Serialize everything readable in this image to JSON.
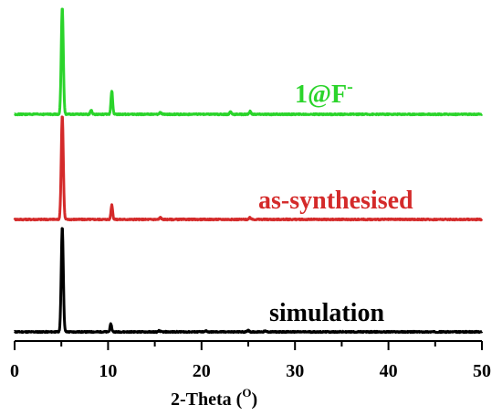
{
  "chart_data": {
    "type": "line",
    "xlabel": "2-Theta (",
    "xlabel_sup": "O",
    "xlabel_close": ")",
    "xlim": [
      0,
      50
    ],
    "x_ticks": [
      "0",
      "10",
      "20",
      "30",
      "40",
      "50"
    ],
    "x_major": [
      0,
      10,
      20,
      30,
      40,
      50
    ],
    "x_minor": [
      5,
      15,
      25,
      35,
      45
    ],
    "y_axis_visible": false,
    "grid": false,
    "series": [
      {
        "name": "simulation",
        "color": "#000000",
        "peaks": [
          [
            5.1,
            100
          ],
          [
            10.3,
            7.5
          ],
          [
            15.5,
            1.2
          ],
          [
            20.5,
            1.0
          ],
          [
            25.0,
            1.8
          ],
          [
            26.8,
            0.8
          ]
        ]
      },
      {
        "name": "as-synthesised",
        "color": "#d42a2a",
        "peaks": [
          [
            5.1,
            100
          ],
          [
            10.4,
            14
          ],
          [
            15.6,
            2
          ],
          [
            25.2,
            1.8
          ]
        ]
      },
      {
        "name": "1@F",
        "name_sup": "-",
        "color": "#2bd42b",
        "peaks": [
          [
            5.1,
            100
          ],
          [
            8.2,
            4
          ],
          [
            10.4,
            22
          ],
          [
            15.6,
            2
          ],
          [
            23.1,
            2.5
          ],
          [
            25.2,
            2.6
          ]
        ]
      }
    ]
  }
}
